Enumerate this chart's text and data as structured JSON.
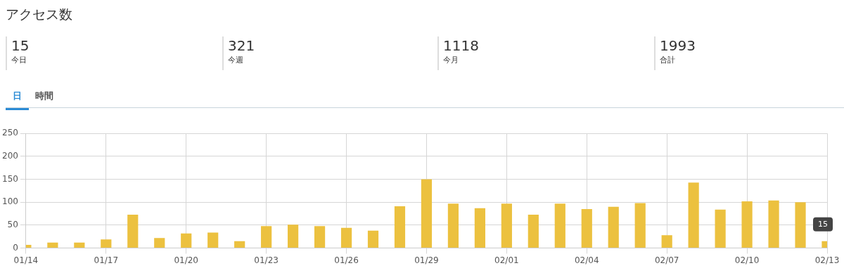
{
  "chart_data": {
    "type": "bar",
    "title": "アクセス数",
    "categories": [
      "01/14",
      null,
      null,
      "01/17",
      null,
      null,
      "01/20",
      null,
      null,
      "01/23",
      null,
      null,
      "01/26",
      null,
      null,
      "01/29",
      null,
      null,
      "02/01",
      null,
      null,
      "02/04",
      null,
      null,
      "02/07",
      null,
      null,
      "02/10",
      null,
      null,
      "02/13"
    ],
    "values": [
      7,
      12,
      12,
      19,
      73,
      22,
      32,
      34,
      15,
      48,
      51,
      48,
      44,
      38,
      91,
      150,
      97,
      87,
      97,
      73,
      97,
      85,
      90,
      98,
      28,
      143,
      84,
      102,
      104,
      100,
      15
    ],
    "color": "#ecc13f",
    "ylim": [
      0,
      250
    ],
    "yticks": [
      0,
      50,
      100,
      150,
      200,
      250
    ],
    "grid": true,
    "legend": false,
    "annotations": [
      "15",
      "今日",
      "321",
      "今週",
      "1118",
      "今月",
      "1993",
      "合計",
      "日",
      "時間",
      {
        "text": "15",
        "x": "02/13",
        "y": 15
      }
    ]
  }
}
